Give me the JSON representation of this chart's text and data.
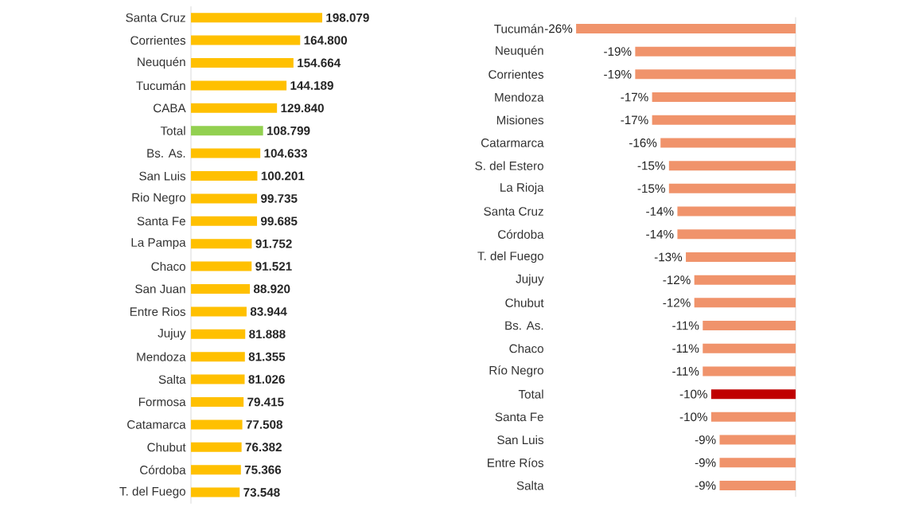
{
  "chart_data": [
    {
      "type": "bar",
      "orientation": "horizontal",
      "tick_labels": "y",
      "categories": [
        "Santa Cruz",
        "Corrientes",
        "Neuquén",
        "Tucumán",
        "CABA",
        "Total",
        "Bs. As.",
        "San Luis",
        "Rio Negro",
        "Santa Fe",
        "La Pampa",
        "Chaco",
        "San Juan",
        "Entre Rios",
        "Jujuy",
        "Mendoza",
        "Salta",
        "Formosa",
        "Catamarca",
        "Chubut",
        "Córdoba",
        "T. del Fuego"
      ],
      "values": [
        198079,
        164800,
        154664,
        144189,
        129840,
        108799,
        104633,
        100201,
        99735,
        99685,
        91752,
        91521,
        88920,
        83944,
        81888,
        81355,
        81026,
        79415,
        77508,
        76382,
        75366,
        73548
      ],
      "value_labels": [
        "198.079",
        "164.800",
        "154.664",
        "144.189",
        "129.840",
        "108.799",
        "104.633",
        "100.201",
        "99.735",
        "99.685",
        "91.752",
        "91.521",
        "88.920",
        "83.944",
        "81.888",
        "81.355",
        "81.026",
        "79.415",
        "77.508",
        "76.382",
        "75.366",
        "73.548"
      ],
      "colors": [
        "#ffc000",
        "#ffc000",
        "#ffc000",
        "#ffc000",
        "#ffc000",
        "#92d050",
        "#ffc000",
        "#ffc000",
        "#ffc000",
        "#ffc000",
        "#ffc000",
        "#ffc000",
        "#ffc000",
        "#ffc000",
        "#ffc000",
        "#ffc000",
        "#ffc000",
        "#ffc000",
        "#ffc000",
        "#ffc000",
        "#ffc000",
        "#ffc000"
      ]
    },
    {
      "type": "bar",
      "orientation": "horizontal",
      "tick_labels": "y",
      "categories": [
        "Tucumán",
        "Neuquén",
        "Corrientes",
        "Mendoza",
        "Misiones",
        "Catarmarca",
        "S. del Estero",
        "La Rioja",
        "Santa Cruz",
        "Córdoba",
        "T. del Fuego",
        "Jujuy",
        "Chubut",
        "Bs. As.",
        "Chaco",
        "Río Negro",
        "Total",
        "Santa Fe",
        "San Luis",
        "Entre Ríos",
        "Salta"
      ],
      "values": [
        -26,
        -19,
        -19,
        -17,
        -17,
        -16,
        -15,
        -15,
        -14,
        -14,
        -13,
        -12,
        -12,
        -11,
        -11,
        -11,
        -10,
        -10,
        -9,
        -9,
        -9
      ],
      "value_labels": [
        "-26%",
        "-19%",
        "-19%",
        "-17%",
        "-17%",
        "-16%",
        "-15%",
        "-15%",
        "-14%",
        "-14%",
        "-13%",
        "-12%",
        "-12%",
        "-11%",
        "-11%",
        "-11%",
        "-10%",
        "-10%",
        "-9%",
        "-9%",
        "-9%"
      ],
      "colors": [
        "#f0936b",
        "#f0936b",
        "#f0936b",
        "#f0936b",
        "#f0936b",
        "#f0936b",
        "#f0936b",
        "#f0936b",
        "#f0936b",
        "#f0936b",
        "#f0936b",
        "#f0936b",
        "#f0936b",
        "#f0936b",
        "#f0936b",
        "#f0936b",
        "#c00000",
        "#f0936b",
        "#f0936b",
        "#f0936b",
        "#f0936b"
      ]
    }
  ]
}
